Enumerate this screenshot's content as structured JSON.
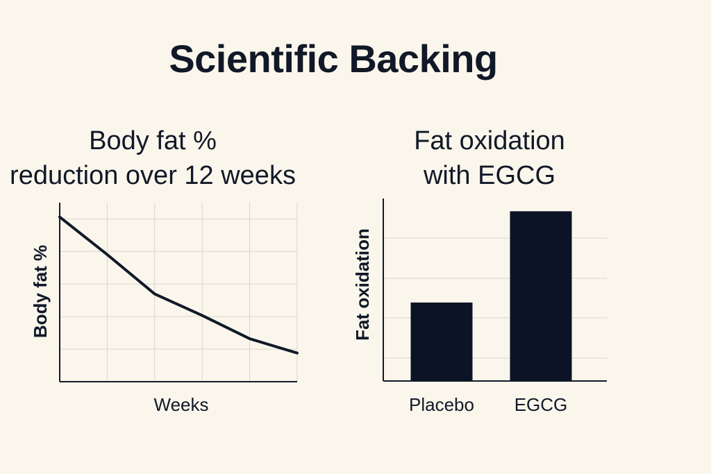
{
  "page": {
    "title": "Scientific Backing"
  },
  "colors": {
    "background": "#faf6ec",
    "ink": "#111827",
    "grid": "#d9d5cc",
    "bar": "#0c1326"
  },
  "chart_data": [
    {
      "type": "line",
      "title_lines": [
        "Body fat %",
        "reduction over 12 weeks"
      ],
      "xlabel": "Weeks",
      "ylabel": "Body fat %",
      "grid": true,
      "xlim": [
        0,
        12
      ],
      "ylim": [
        0,
        100
      ],
      "x": [
        0,
        2.4,
        4.8,
        7.2,
        9.6,
        12
      ],
      "series": [
        {
          "values": [
            92,
            71,
            49,
            37,
            24,
            16
          ]
        }
      ]
    },
    {
      "type": "bar",
      "title_lines": [
        "Fat oxidation",
        "with EGCG"
      ],
      "xlabel": "",
      "ylabel": "Fat oxidation",
      "grid": true,
      "ylim": [
        0,
        100
      ],
      "categories": [
        "Placebo",
        "EGCG"
      ],
      "values": [
        43,
        93
      ]
    }
  ]
}
